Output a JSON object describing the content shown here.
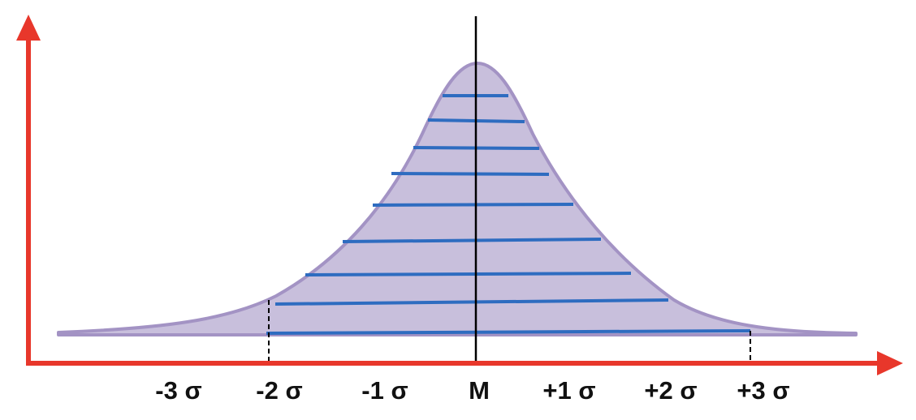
{
  "diagram": {
    "type": "bell-curve",
    "colors": {
      "axis": "#e8372b",
      "curve_fill": "#c8bfdc",
      "curve_stroke": "#a393c4",
      "baseline_shadow": "#9a9a9a",
      "levels": "#2e6cc0",
      "center_line": "#000000",
      "labels": "#111111"
    },
    "x_labels": [
      {
        "key": "m3",
        "text": "-3 σ"
      },
      {
        "key": "m2",
        "text": "-2 σ"
      },
      {
        "key": "m1",
        "text": "-1 σ"
      },
      {
        "key": "mean",
        "text": "M"
      },
      {
        "key": "p1",
        "text": "+1 σ"
      },
      {
        "key": "p2",
        "text": "+2 σ"
      },
      {
        "key": "p3",
        "text": "+3 σ"
      }
    ],
    "level_lines_count": 9
  }
}
